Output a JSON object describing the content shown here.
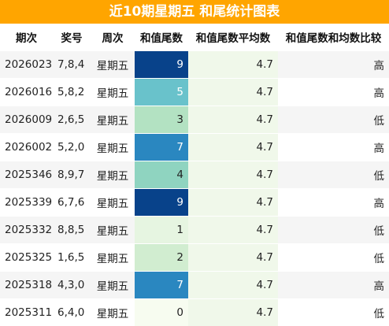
{
  "title": "近10期星期五 和尾统计图表",
  "headers": [
    "期次",
    "奖号",
    "周次",
    "和值尾数",
    "和值尾数平均数",
    "和值尾数和均数比较"
  ],
  "rows": [
    {
      "issue": "2026023",
      "nums": "7,8,4",
      "week": "星期五",
      "tail": "9",
      "avg": "4.7",
      "cmp": "高",
      "tail_bg": "#08428a",
      "tail_fg": "#ffffff"
    },
    {
      "issue": "2026016",
      "nums": "5,8,2",
      "week": "星期五",
      "tail": "5",
      "avg": "4.7",
      "cmp": "高",
      "tail_bg": "#69c2cb",
      "tail_fg": "#ffffff"
    },
    {
      "issue": "2026009",
      "nums": "2,6,5",
      "week": "星期五",
      "tail": "3",
      "avg": "4.7",
      "cmp": "低",
      "tail_bg": "#b3e2c2",
      "tail_fg": "#222222"
    },
    {
      "issue": "2026002",
      "nums": "5,2,0",
      "week": "星期五",
      "tail": "7",
      "avg": "4.7",
      "cmp": "高",
      "tail_bg": "#2a87c0",
      "tail_fg": "#ffffff"
    },
    {
      "issue": "2025346",
      "nums": "8,9,7",
      "week": "星期五",
      "tail": "4",
      "avg": "4.7",
      "cmp": "低",
      "tail_bg": "#8fd4c0",
      "tail_fg": "#222222"
    },
    {
      "issue": "2025339",
      "nums": "6,7,6",
      "week": "星期五",
      "tail": "9",
      "avg": "4.7",
      "cmp": "高",
      "tail_bg": "#08428a",
      "tail_fg": "#ffffff"
    },
    {
      "issue": "2025332",
      "nums": "8,8,5",
      "week": "星期五",
      "tail": "1",
      "avg": "4.7",
      "cmp": "低",
      "tail_bg": "#e6f5e1",
      "tail_fg": "#222222"
    },
    {
      "issue": "2025325",
      "nums": "1,6,5",
      "week": "星期五",
      "tail": "2",
      "avg": "4.7",
      "cmp": "低",
      "tail_bg": "#d1edd0",
      "tail_fg": "#222222"
    },
    {
      "issue": "2025318",
      "nums": "4,3,0",
      "week": "星期五",
      "tail": "7",
      "avg": "4.7",
      "cmp": "高",
      "tail_bg": "#2a87c0",
      "tail_fg": "#ffffff"
    },
    {
      "issue": "2025311",
      "nums": "6,4,0",
      "week": "星期五",
      "tail": "0",
      "avg": "4.7",
      "cmp": "低",
      "tail_bg": "#f7fcf0",
      "tail_fg": "#222222"
    }
  ]
}
